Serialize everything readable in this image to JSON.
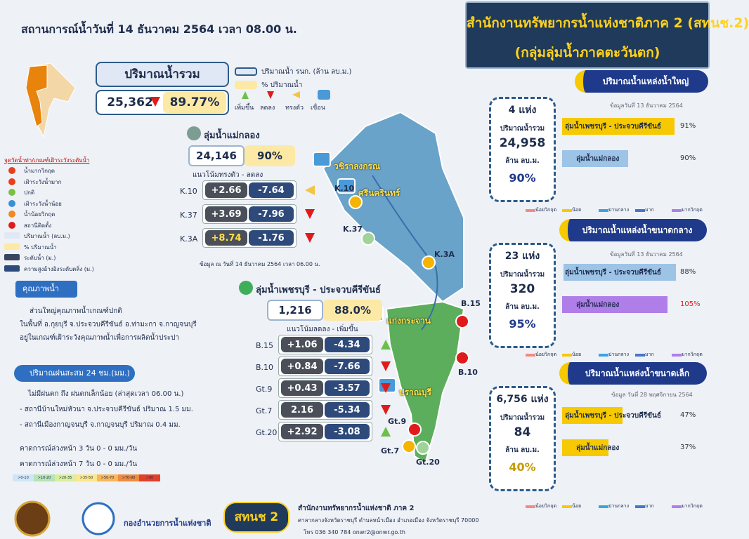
{
  "header": {
    "situation": "สถานการณ์น้ำวันที่  14 ธันวาคม 2564  เวลา 08.00 น.",
    "title_line1": "สำนักงานทรัพยากรน้ำแห่งชาติภาค 2 (สทนช.2)",
    "title_line2": "(กลุ่มลุ่มน้ำภาคตะวันตก)"
  },
  "total": {
    "label": "ปริมาณน้ำรวม",
    "volume": "25,362",
    "percent": "89.77%"
  },
  "top_legend": {
    "volume": "ปริมาณน้ำ รนก. (ล้าน ลบ.ม.)",
    "percent": "% ปริมาณน้ำ",
    "icons": [
      "เพิ่มขึ้น",
      "ลดลง",
      "ทรงตัว",
      "เขื่อน"
    ]
  },
  "left_legend": {
    "title": "จุดวัดน้ำท่า/เกณฑ์เฝ้าระวังระดับน้ำ",
    "items": [
      "น้ำมากวิกฤต",
      "เฝ้าระวังน้ำมาก",
      "ปกติ",
      "เฝ้าระวังน้ำน้อย",
      "น้ำน้อยวิกฤต",
      "สถานีติดตั้ง",
      "ปริมาณน้ำ (ลบ.ม.)",
      "% ปริมาณน้ำ",
      "ระดับน้ำ (ม.)",
      "ความสูงอ้างอิงระดับตลิ่ง (ม.)"
    ]
  },
  "quality": {
    "title": "คุณภาพน้ำ",
    "lines": [
      "ส่วนใหญ่คุณภาพน้ำเกณฑ์ปกติ",
      "ในพื้นที่ อ.กุยบุรี จ.ประจวบคีรีขันธ์ อ.ท่ามะกา จ.กาญจนบุรี",
      "อยู่ในเกณฑ์เฝ้าระวังคุณภาพน้ำเพื่อการผลิตน้ำประปา"
    ]
  },
  "rain": {
    "title": "ปริมาณฝนสะสม 24 ชม.(มม.)",
    "lines": [
      "ไม่มีฝนตก ถึง ฝนตกเล็กน้อย (ล่าสุดเวลา 06.00 น.)",
      "- สถานีบ้านใหม่หัวนา จ.ประจวบคีรีขันธ์ ปริมาณ 1.5 มม.",
      "- สถานีเมืองกาญจนบุรี จ.กาญจนบุรี ปริมาณ 0.4 มม."
    ],
    "forecasts": [
      "คาดการณ์ล่วงหน้า 3 วัน   0 - 0 มม./วัน",
      "คาดการณ์ล่วงหน้า 7 วัน   0 - 0 มม./วัน"
    ],
    "scale": [
      ">0-10",
      ">10-20",
      ">20-35",
      ">35-50",
      ">50-70",
      ">70-90",
      ">90"
    ]
  },
  "basins": [
    {
      "name": "ลุ่มน้ำแม่กลอง",
      "volume": "24,146",
      "percent": "90%",
      "trend": "แนวโน้มทรงตัว  -  ลดลง",
      "note": "ข้อมูล ณ วันที่  14 ธันวาคม 2564    เวลา 06.00 น.",
      "stations": [
        {
          "code": "K.10",
          "level": "+2.66",
          "bank": "-7.64",
          "trend": "steady"
        },
        {
          "code": "K.37",
          "level": "+3.69",
          "bank": "-7.96",
          "trend": "down"
        },
        {
          "code": "K.3A",
          "level": "+8.74",
          "bank": "-1.76",
          "trend": "down"
        }
      ]
    },
    {
      "name": "ลุ่มน้ำเพชรบุรี - ประจวบคีรีขันธ์",
      "volume": "1,216",
      "percent": "88.0%",
      "trend": "แนวโน้มลดลง  -  เพิ่มขึ้น",
      "stations": [
        {
          "code": "B.15",
          "level": "+1.06",
          "bank": "-4.34",
          "trend": "up"
        },
        {
          "code": "B.10",
          "level": "+0.84",
          "bank": "-7.66",
          "trend": "down"
        },
        {
          "code": "Gt.9",
          "level": "+0.43",
          "bank": "-3.57",
          "trend": "down"
        },
        {
          "code": "Gt.7",
          "level": "2.16",
          "bank": "-5.34",
          "trend": "down"
        },
        {
          "code": "Gt.20",
          "level": "+2.92",
          "bank": "-3.08",
          "trend": "up"
        }
      ]
    }
  ],
  "map_labels": {
    "dams": [
      "วชิราลงกรณ",
      "ศรีนครินทร์",
      "แก่งกระจาน",
      "ปราณบุรี"
    ],
    "stations": [
      "K.10",
      "K.37",
      "K.3A",
      "B.15",
      "B.10",
      "Gt.9",
      "Gt.7",
      "Gt.20"
    ]
  },
  "reservoirs": [
    {
      "title": "ปริมาณน้ำแหล่งน้ำใหญ่",
      "date": "ข้อมูลวันที่ 13 ธันวาคม 2564",
      "count": "4 แห่ง",
      "label": "ปริมาณน้ำรวม",
      "volume": "24,958",
      "unit": "ล้าน ลบ.ม.",
      "percent": "90%",
      "bars": [
        {
          "name": "ลุ่มน้ำเพชรบุรี - ประจวบคีรีขันธ์",
          "value": "91%",
          "color": "#f6c900"
        },
        {
          "name": "ลุ่มน้ำแม่กลอง",
          "value": "90%",
          "color": "#9dc3e6"
        }
      ]
    },
    {
      "title": "ปริมาณน้ำแหล่งน้ำขนาดกลาง",
      "date": "ข้อมูลวันที่ 13 ธันวาคม 2564",
      "count": "23 แห่ง",
      "label": "ปริมาณน้ำรวม",
      "volume": "320",
      "unit": "ล้าน ลบ.ม.",
      "percent": "95%",
      "bars": [
        {
          "name": "ลุ่มน้ำเพชรบุรี - ประจวบคีรีขันธ์",
          "value": "88%",
          "color": "#9dc3e6"
        },
        {
          "name": "ลุ่มน้ำแม่กลอง",
          "value": "105%",
          "color": "#b07ee8"
        }
      ]
    },
    {
      "title": "ปริมาณน้ำแหล่งน้ำขนาดเล็ก",
      "date": "ข้อมูล วันที่ 28 พฤศจิกายน 2564",
      "count": "6,756 แห่ง",
      "label": "ปริมาณน้ำรวม",
      "volume": "84",
      "unit": "ล้าน ลบ.ม.",
      "percent": "40%",
      "bars": [
        {
          "name": "ลุ่มน้ำเพชรบุรี - ประจวบคีรีขันธ์",
          "value": "47%",
          "color": "#f6c900"
        },
        {
          "name": "ลุ่มน้ำแม่กลอง",
          "value": "37%",
          "color": "#f6c900"
        }
      ]
    }
  ],
  "level_legend": [
    "น้อยวิกฤต",
    "น้อย",
    "ปานกลาง",
    "มาก",
    "มากวิกฤต"
  ],
  "footer": {
    "agency": "กองอำนวยการน้ำแห่งชาติ",
    "badge": "สทนช 2",
    "office": "สำนักงานทรัพยากรน้ำแห่งชาติ ภาค 2",
    "address": "ศาลากลางจังหวัดราชบุรี ตำบลหน้าเมือง อำเภอเมือง จังหวัดราชบุรี 70000",
    "contact": "โทร 036 340 784    onwr2@onwr.go.th"
  }
}
